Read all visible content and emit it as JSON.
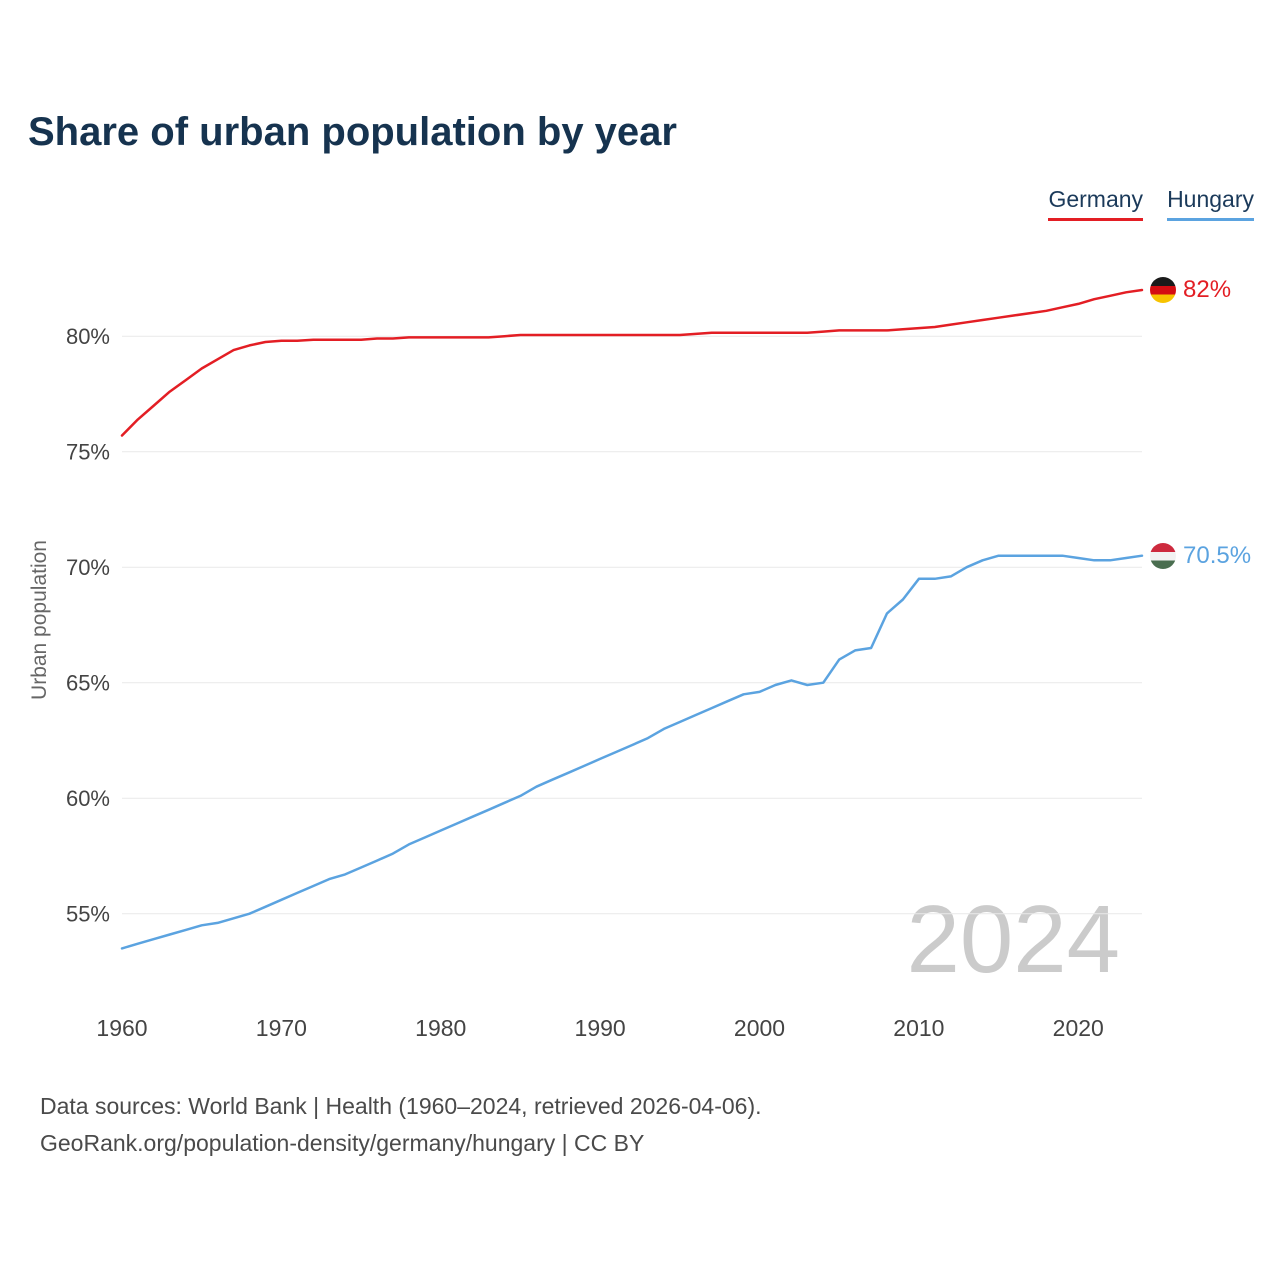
{
  "title": "Share of urban population by year",
  "legend": [
    {
      "label": "Germany",
      "color": "#e31e24"
    },
    {
      "label": "Hungary",
      "color": "#5ba3e0"
    }
  ],
  "end_labels": [
    {
      "text": "82%",
      "flag": "germany-flag"
    },
    {
      "text": "70.5%",
      "flag": "hungary-flag"
    }
  ],
  "watermark": "2024",
  "ylabel": "Urban population",
  "footer": {
    "line1": "Data sources: World Bank | Health (1960–2024, retrieved 2026-04-06).",
    "line2": "GeoRank.org/population-density/germany/hungary | CC BY"
  },
  "chart_data": {
    "type": "line",
    "title": "Share of urban population by year",
    "xlabel": "",
    "ylabel": "Urban population",
    "grid": "horizontal",
    "legend_position": "top-right",
    "ylim": [
      52.5,
      83
    ],
    "x_ticks": [
      1960,
      1970,
      1980,
      1990,
      2000,
      2010,
      2020
    ],
    "y_ticks": [
      55,
      60,
      65,
      70,
      75,
      80
    ],
    "y_tick_suffix": "%",
    "x": [
      1960,
      1961,
      1962,
      1963,
      1964,
      1965,
      1966,
      1967,
      1968,
      1969,
      1970,
      1971,
      1972,
      1973,
      1974,
      1975,
      1976,
      1977,
      1978,
      1979,
      1980,
      1981,
      1982,
      1983,
      1984,
      1985,
      1986,
      1987,
      1988,
      1989,
      1990,
      1991,
      1992,
      1993,
      1994,
      1995,
      1996,
      1997,
      1998,
      1999,
      2000,
      2001,
      2002,
      2003,
      2004,
      2005,
      2006,
      2007,
      2008,
      2009,
      2010,
      2011,
      2012,
      2013,
      2014,
      2015,
      2016,
      2017,
      2018,
      2019,
      2020,
      2021,
      2022,
      2023,
      2024
    ],
    "series": [
      {
        "name": "Germany",
        "color": "#e31e24",
        "values": [
          75.7,
          76.4,
          77.0,
          77.6,
          78.1,
          78.6,
          79.0,
          79.4,
          79.6,
          79.75,
          79.8,
          79.8,
          79.85,
          79.85,
          79.85,
          79.85,
          79.9,
          79.9,
          79.95,
          79.95,
          79.95,
          79.95,
          79.95,
          79.95,
          80.0,
          80.05,
          80.05,
          80.05,
          80.05,
          80.05,
          80.05,
          80.05,
          80.05,
          80.05,
          80.05,
          80.05,
          80.1,
          80.15,
          80.15,
          80.15,
          80.15,
          80.15,
          80.15,
          80.15,
          80.2,
          80.25,
          80.25,
          80.25,
          80.25,
          80.3,
          80.35,
          80.4,
          80.5,
          80.6,
          80.7,
          80.8,
          80.9,
          81.0,
          81.1,
          81.25,
          81.4,
          81.6,
          81.75,
          81.9,
          82.0
        ]
      },
      {
        "name": "Hungary",
        "color": "#5ba3e0",
        "values": [
          53.5,
          53.7,
          53.9,
          54.1,
          54.3,
          54.5,
          54.6,
          54.8,
          55.0,
          55.3,
          55.6,
          55.9,
          56.2,
          56.5,
          56.7,
          57.0,
          57.3,
          57.6,
          58.0,
          58.3,
          58.6,
          58.9,
          59.2,
          59.5,
          59.8,
          60.1,
          60.5,
          60.8,
          61.1,
          61.4,
          61.7,
          62.0,
          62.3,
          62.6,
          63.0,
          63.3,
          63.6,
          63.9,
          64.2,
          64.5,
          64.6,
          64.9,
          65.1,
          64.9,
          65.0,
          66.0,
          66.4,
          66.5,
          68.0,
          68.6,
          69.5,
          69.5,
          69.6,
          70.0,
          70.3,
          70.5,
          70.5,
          70.5,
          70.5,
          70.5,
          70.4,
          70.3,
          70.3,
          70.4,
          70.5
        ]
      }
    ]
  }
}
